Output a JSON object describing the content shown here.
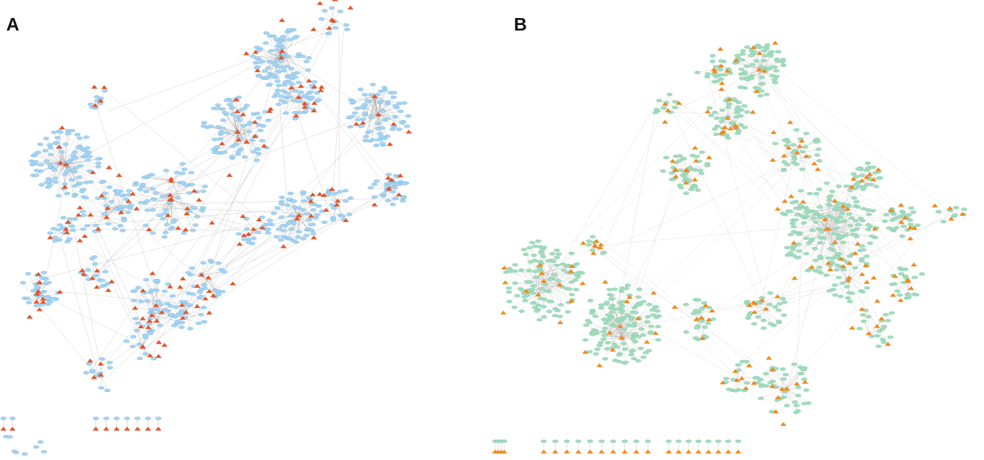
{
  "figure": {
    "panels": [
      {
        "id": "A",
        "label": "A",
        "node_color": "#a8d4f2",
        "node_stroke": "#5aa8dc",
        "hub_color": "#e4552a",
        "edge_color": "#8a8a8a",
        "clusters": [
          [
            95,
            237,
            50,
            90,
            2
          ],
          [
            405,
            83,
            44,
            75,
            2
          ],
          [
            545,
            165,
            45,
            70,
            2
          ],
          [
            560,
            272,
            27,
            34,
            2
          ],
          [
            428,
            315,
            40,
            60,
            2
          ],
          [
            342,
            190,
            50,
            70,
            4
          ],
          [
            430,
            140,
            35,
            45,
            3
          ],
          [
            245,
            288,
            55,
            60,
            4
          ],
          [
            155,
            300,
            40,
            40,
            3
          ],
          [
            55,
            420,
            30,
            30,
            3
          ],
          [
            225,
            440,
            40,
            40,
            3
          ],
          [
            268,
            450,
            30,
            26,
            2
          ],
          [
            300,
            400,
            30,
            22,
            2
          ],
          [
            485,
            295,
            25,
            18,
            2
          ],
          [
            145,
            145,
            18,
            8,
            1
          ],
          [
            140,
            390,
            25,
            14,
            2
          ],
          [
            95,
            330,
            25,
            18,
            2
          ],
          [
            145,
            540,
            25,
            12,
            1
          ],
          [
            205,
            500,
            25,
            12,
            2
          ],
          [
            365,
            330,
            25,
            16,
            2
          ],
          [
            480,
            30,
            25,
            10,
            2
          ]
        ],
        "bottom_row": [
          [
            5,
            603,
            13,
            2,
            8
          ],
          [
            138,
            603,
            90,
            7,
            0
          ]
        ]
      },
      {
        "id": "B",
        "label": "B",
        "node_color": "#a5dcc0",
        "node_stroke": "#6bbf95",
        "hub_color": "#ee8a1e",
        "edge_color": "#b0b0b0",
        "clusters": [
          [
            385,
            100,
            38,
            70,
            2
          ],
          [
            75,
            405,
            58,
            110,
            4
          ],
          [
            185,
            470,
            60,
            130,
            4
          ],
          [
            485,
            330,
            70,
            160,
            6
          ],
          [
            540,
            255,
            20,
            25,
            2
          ],
          [
            590,
            320,
            25,
            28,
            2
          ],
          [
            600,
            405,
            25,
            20,
            2
          ],
          [
            280,
            245,
            35,
            40,
            3
          ],
          [
            340,
            170,
            30,
            40,
            3
          ],
          [
            320,
            100,
            25,
            20,
            2
          ],
          [
            425,
            560,
            40,
            40,
            3
          ],
          [
            360,
            545,
            25,
            16,
            2
          ],
          [
            295,
            460,
            30,
            24,
            2
          ],
          [
            395,
            445,
            30,
            25,
            2
          ],
          [
            150,
            355,
            15,
            8,
            2
          ],
          [
            440,
            220,
            35,
            30,
            3
          ],
          [
            250,
            150,
            20,
            10,
            1
          ],
          [
            660,
            300,
            25,
            8,
            1
          ],
          [
            515,
            400,
            35,
            25,
            2
          ],
          [
            555,
            470,
            30,
            18,
            2
          ]
        ],
        "bottom_row": [
          [
            5,
            636,
            13,
            4,
            0
          ],
          [
            75,
            636,
            150,
            10,
            0
          ],
          [
            255,
            636,
            100,
            8,
            0
          ]
        ]
      }
    ]
  }
}
